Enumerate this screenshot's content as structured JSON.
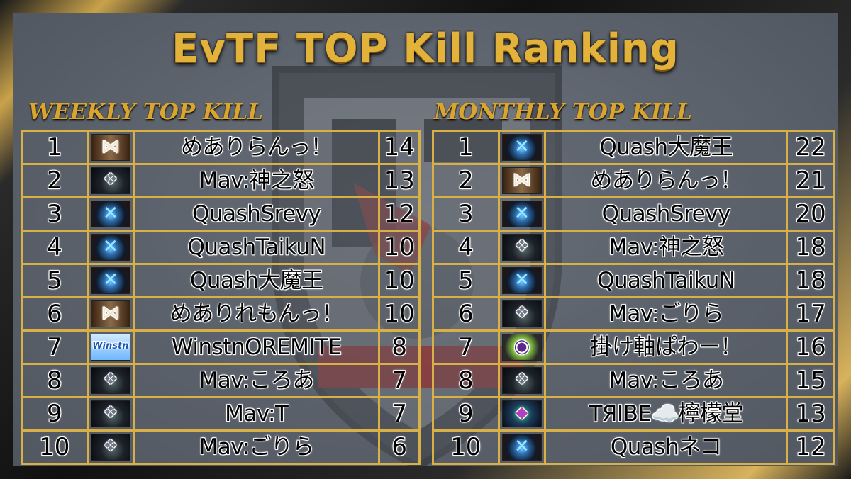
{
  "title": "EvTF TOP Kill Ranking",
  "weekly": {
    "heading": "WEEKLY TOP KILL",
    "rows": [
      {
        "rank": "1",
        "name": "めありらんっ！",
        "kills": "14",
        "avatar": "meari-avatar"
      },
      {
        "rank": "2",
        "name": "Mav:神之怒",
        "kills": "13",
        "avatar": "mav-avatar"
      },
      {
        "rank": "3",
        "name": "QuashSrevy",
        "kills": "12",
        "avatar": "quash-avatar"
      },
      {
        "rank": "4",
        "name": "QuashTaikuN",
        "kills": "10",
        "avatar": "quash-avatar"
      },
      {
        "rank": "5",
        "name": "Quash大魔王",
        "kills": "10",
        "avatar": "quash-avatar"
      },
      {
        "rank": "6",
        "name": "めありれもんっ！",
        "kills": "10",
        "avatar": "meari-avatar"
      },
      {
        "rank": "7",
        "name": "WinstnOREMITE",
        "kills": "8",
        "avatar": "winstn-avatar"
      },
      {
        "rank": "8",
        "name": "Mav:ころあ",
        "kills": "7",
        "avatar": "mav-avatar"
      },
      {
        "rank": "9",
        "name": "Mav:T",
        "kills": "7",
        "avatar": "mav-avatar"
      },
      {
        "rank": "10",
        "name": "Mav:ごりら",
        "kills": "6",
        "avatar": "mav-avatar"
      }
    ]
  },
  "monthly": {
    "heading": "MONTHLY TOP KILL",
    "rows": [
      {
        "rank": "1",
        "name": "Quash大魔王",
        "kills": "22",
        "avatar": "quash-avatar"
      },
      {
        "rank": "2",
        "name": "めありらんっ！",
        "kills": "21",
        "avatar": "meari-avatar"
      },
      {
        "rank": "3",
        "name": "QuashSrevy",
        "kills": "20",
        "avatar": "quash-avatar"
      },
      {
        "rank": "4",
        "name": "Mav:神之怒",
        "kills": "18",
        "avatar": "mav-avatar"
      },
      {
        "rank": "5",
        "name": "QuashTaikuN",
        "kills": "18",
        "avatar": "quash-avatar"
      },
      {
        "rank": "6",
        "name": "Mav:ごりら",
        "kills": "17",
        "avatar": "mav-avatar"
      },
      {
        "rank": "7",
        "name": "掛け軸ぱわー！",
        "kills": "16",
        "avatar": "green-avatar"
      },
      {
        "rank": "8",
        "name": "Mav:ころあ",
        "kills": "15",
        "avatar": "mav-avatar"
      },
      {
        "rank": "9",
        "name": "TЯIBE☁️檸檬堂",
        "kills": "13",
        "avatar": "tribe-avatar"
      },
      {
        "rank": "10",
        "name": "Quashネコ",
        "kills": "12",
        "avatar": "quash-avatar"
      }
    ]
  },
  "colors": {
    "gold": "#d8b046",
    "title_gold": "#e2b23a",
    "panel": "#5c636d"
  }
}
